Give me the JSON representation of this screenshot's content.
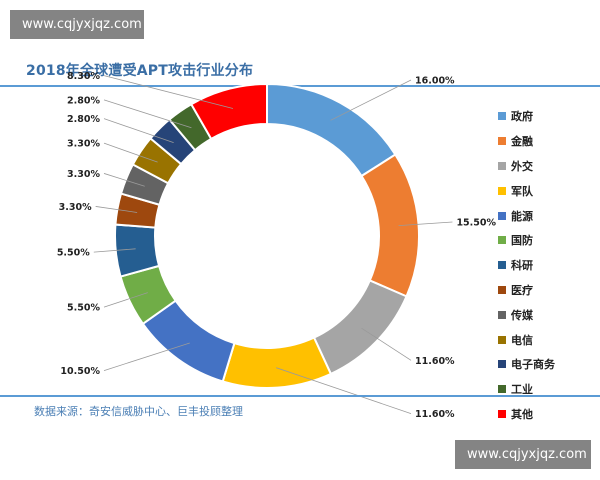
{
  "watermark": "www.cqjyxjqz.com",
  "chart_data": {
    "type": "pie",
    "title": "2018年全球遭受APT攻击行业分布",
    "source": "数据来源：奇安信威胁中心、巨丰投顾整理",
    "legend_position": "right",
    "categories": [
      "政府",
      "金融",
      "外交",
      "军队",
      "能源",
      "国防",
      "科研",
      "医疗",
      "传媒",
      "电信",
      "电子商务",
      "工业",
      "其他"
    ],
    "values": [
      16.0,
      15.5,
      11.6,
      11.6,
      10.5,
      5.5,
      5.5,
      3.3,
      3.3,
      3.3,
      2.8,
      2.8,
      8.3
    ],
    "labels": [
      "16.00%",
      "15.50%",
      "11.60%",
      "11.60%",
      "10.50%",
      "5.50%",
      "5.50%",
      "3.30%",
      "3.30%",
      "3.30%",
      "2.80%",
      "2.80%",
      "8.30%"
    ],
    "colors": [
      "#5b9bd5",
      "#ed7d31",
      "#a5a5a5",
      "#ffc000",
      "#4472c4",
      "#70ad47",
      "#255e91",
      "#9e480e",
      "#636363",
      "#997300",
      "#264478",
      "#43682b",
      "#ff0000"
    ]
  }
}
